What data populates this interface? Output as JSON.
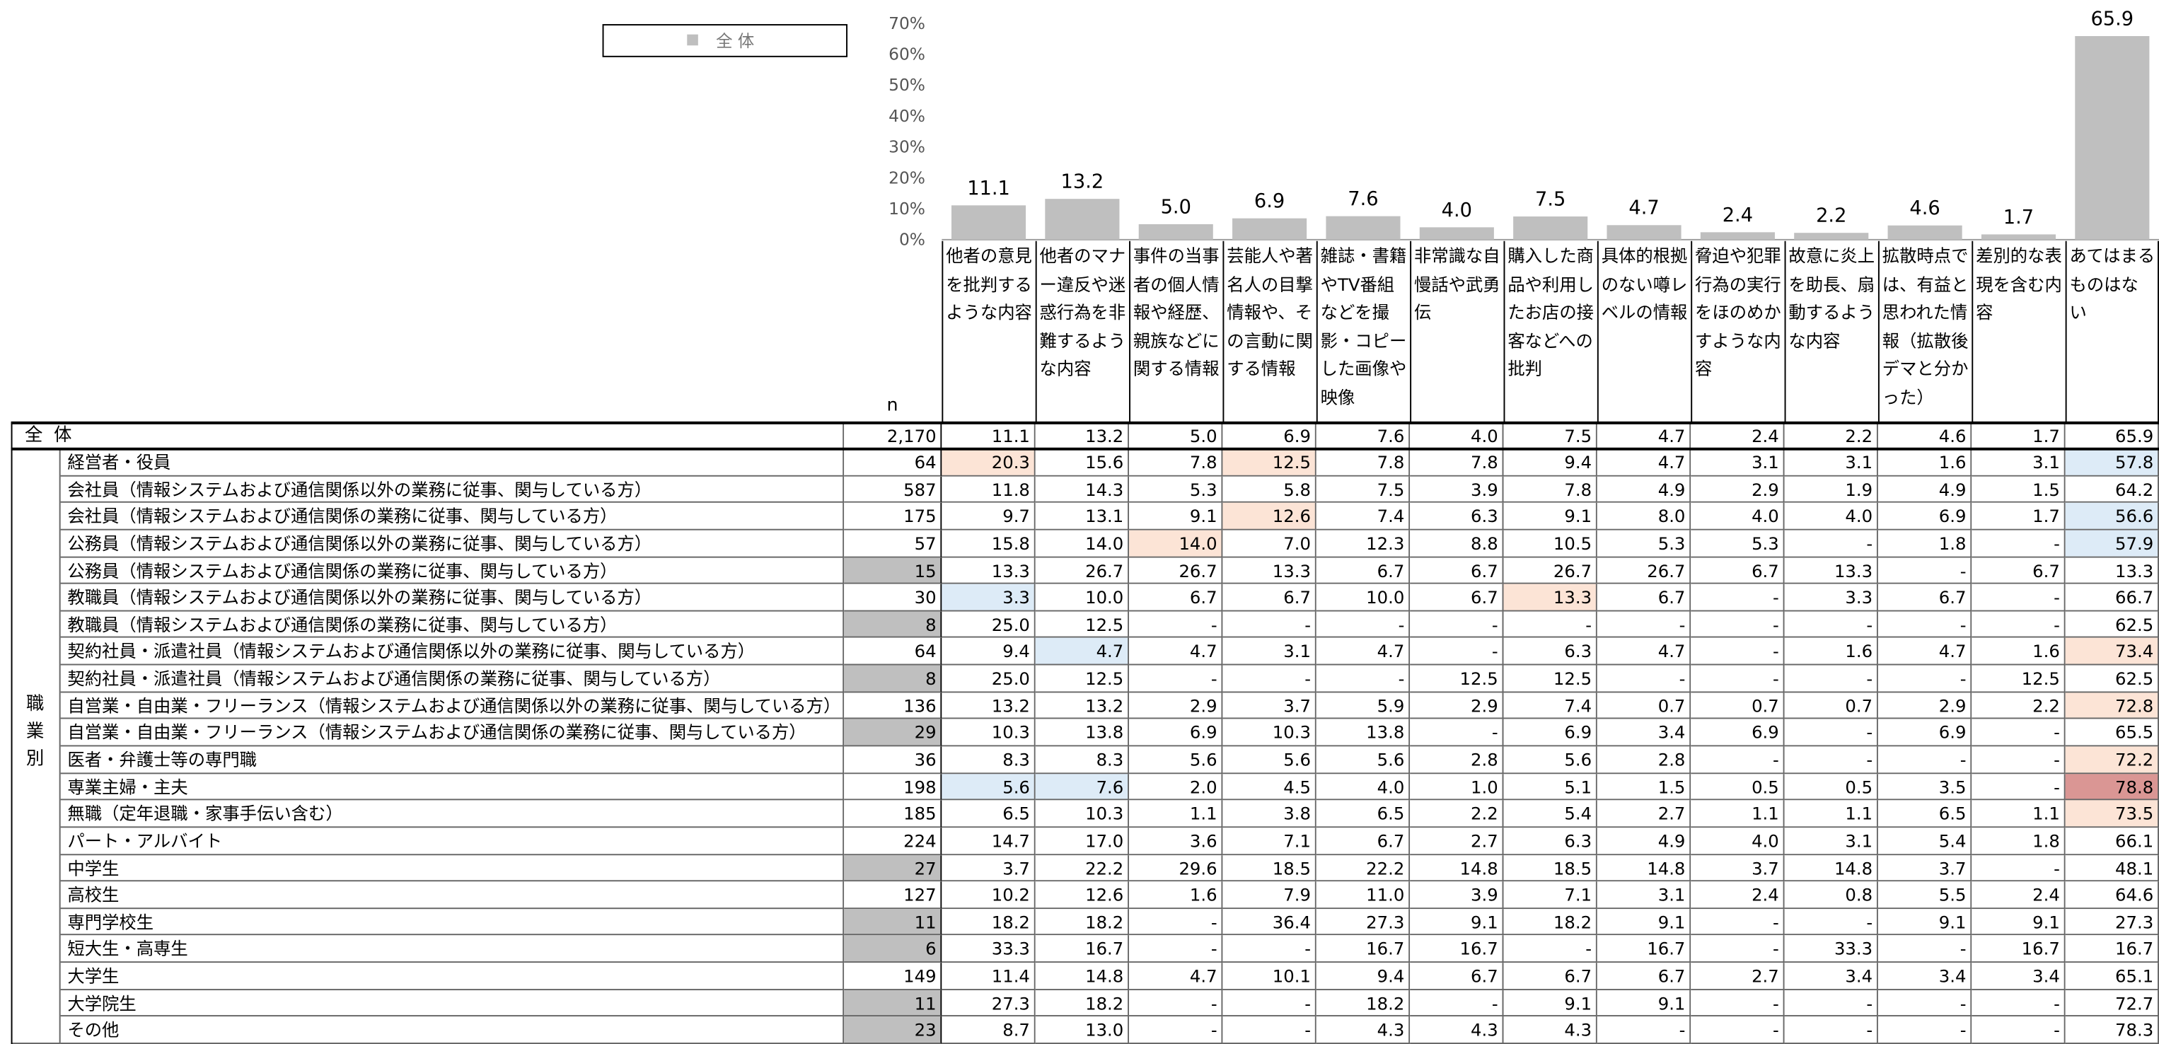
{
  "chart_data": {
    "type": "bar",
    "categories": [
      "他者の意見を批判するような内容",
      "他者のマナー違反や迷惑行為を非難するような内容",
      "事件の当事者の個人情報や経歴、親族などに関する情報",
      "芸能人や著名人の目撃情報や、その言動に関する情報",
      "雑誌・書籍やTV番組などを撮影・コピーした画像や映像",
      "非常識な自慢話や武勇伝",
      "購入した商品や利用したお店の接客などへの批判",
      "具体的根拠のない噂レベルの情報",
      "脅迫や犯罪行為の実行をほのめかすような内容",
      "故意に炎上を助長、扇動するような内容",
      "拡散時点では、有益と思われた情報（拡散後デマと分かった）",
      "差別的な表現を含む内容",
      "あてはまるものはない"
    ],
    "series": [
      {
        "name": "全 体",
        "color": "#bfbfbf",
        "values": [
          11.1,
          13.2,
          5.0,
          6.9,
          7.6,
          4.0,
          7.5,
          4.7,
          2.4,
          2.2,
          4.6,
          1.7,
          65.9
        ],
        "value_labels": [
          "11.1",
          "13.2",
          "5.0",
          "6.9",
          "7.6",
          "4.0",
          "7.5",
          "4.7",
          "2.4",
          "2.2",
          "4.6",
          "1.7",
          "65.9"
        ]
      }
    ],
    "ylim": [
      0,
      70
    ],
    "yticks": [
      {
        "value": 0,
        "label": "0%"
      },
      {
        "value": 10,
        "label": "10%"
      },
      {
        "value": 20,
        "label": "20%"
      },
      {
        "value": 30,
        "label": "30%"
      },
      {
        "value": 40,
        "label": "40%"
      },
      {
        "value": 50,
        "label": "50%"
      },
      {
        "value": 60,
        "label": "60%"
      },
      {
        "value": 70,
        "label": "70%"
      }
    ],
    "legend": "top-left"
  },
  "table": {
    "n_header": "n",
    "group_label": "職業別",
    "colors": {
      "high": "#fce4d6",
      "low": "#ddebf7",
      "top": "#da9694",
      "small": "#bfbfbf"
    },
    "total": {
      "label": "全 体",
      "n": "2,170",
      "values": [
        "11.1",
        "13.2",
        "5.0",
        "6.9",
        "7.6",
        "4.0",
        "7.5",
        "4.7",
        "2.4",
        "2.2",
        "4.6",
        "1.7",
        "65.9"
      ]
    },
    "rows": [
      {
        "label": "経営者・役員",
        "n": "64",
        "values": [
          "20.3",
          "15.6",
          "7.8",
          "12.5",
          "7.8",
          "7.8",
          "9.4",
          "4.7",
          "3.1",
          "3.1",
          "1.6",
          "3.1",
          "57.8"
        ],
        "shade": [
          "high",
          null,
          null,
          "high",
          null,
          null,
          null,
          null,
          null,
          null,
          null,
          null,
          "low"
        ]
      },
      {
        "label": "会社員（情報システムおよび通信関係以外の業務に従事、関与している方）",
        "n": "587",
        "values": [
          "11.8",
          "14.3",
          "5.3",
          "5.8",
          "7.5",
          "3.9",
          "7.8",
          "4.9",
          "2.9",
          "1.9",
          "4.9",
          "1.5",
          "64.2"
        ]
      },
      {
        "label": "会社員（情報システムおよび通信関係の業務に従事、関与している方）",
        "n": "175",
        "values": [
          "9.7",
          "13.1",
          "9.1",
          "12.6",
          "7.4",
          "6.3",
          "9.1",
          "8.0",
          "4.0",
          "4.0",
          "6.9",
          "1.7",
          "56.6"
        ],
        "shade": [
          null,
          null,
          null,
          "high",
          null,
          null,
          null,
          null,
          null,
          null,
          null,
          null,
          "low"
        ]
      },
      {
        "label": "公務員（情報システムおよび通信関係以外の業務に従事、関与している方）",
        "n": "57",
        "values": [
          "15.8",
          "14.0",
          "14.0",
          "7.0",
          "12.3",
          "8.8",
          "10.5",
          "5.3",
          "5.3",
          "-",
          "1.8",
          "-",
          "57.9"
        ],
        "shade": [
          null,
          null,
          "high",
          null,
          null,
          null,
          null,
          null,
          null,
          null,
          null,
          null,
          "low"
        ]
      },
      {
        "label": "公務員（情報システムおよび通信関係の業務に従事、関与している方）",
        "n": "15",
        "n_shade": "small",
        "values": [
          "13.3",
          "26.7",
          "26.7",
          "13.3",
          "6.7",
          "6.7",
          "26.7",
          "26.7",
          "6.7",
          "13.3",
          "-",
          "6.7",
          "13.3"
        ]
      },
      {
        "label": "教職員（情報システムおよび通信関係以外の業務に従事、関与している方）",
        "n": "30",
        "values": [
          "3.3",
          "10.0",
          "6.7",
          "6.7",
          "10.0",
          "6.7",
          "13.3",
          "6.7",
          "-",
          "3.3",
          "6.7",
          "-",
          "66.7"
        ],
        "shade": [
          "low",
          null,
          null,
          null,
          null,
          null,
          "high",
          null,
          null,
          null,
          null,
          null,
          null
        ]
      },
      {
        "label": "教職員（情報システムおよび通信関係の業務に従事、関与している方）",
        "n": "8",
        "n_shade": "small",
        "values": [
          "25.0",
          "12.5",
          "-",
          "-",
          "-",
          "-",
          "-",
          "-",
          "-",
          "-",
          "-",
          "-",
          "62.5"
        ]
      },
      {
        "label": "契約社員・派遣社員（情報システムおよび通信関係以外の業務に従事、関与している方）",
        "n": "64",
        "values": [
          "9.4",
          "4.7",
          "4.7",
          "3.1",
          "4.7",
          "-",
          "6.3",
          "4.7",
          "-",
          "1.6",
          "4.7",
          "1.6",
          "73.4"
        ],
        "shade": [
          null,
          "low",
          null,
          null,
          null,
          null,
          null,
          null,
          null,
          null,
          null,
          null,
          "high"
        ]
      },
      {
        "label": "契約社員・派遣社員（情報システムおよび通信関係の業務に従事、関与している方）",
        "n": "8",
        "n_shade": "small",
        "values": [
          "25.0",
          "12.5",
          "-",
          "-",
          "-",
          "12.5",
          "12.5",
          "-",
          "-",
          "-",
          "-",
          "12.5",
          "62.5"
        ]
      },
      {
        "label": "自営業・自由業・フリーランス（情報システムおよび通信関係以外の業務に従事、関与している方）",
        "n": "136",
        "values": [
          "13.2",
          "13.2",
          "2.9",
          "3.7",
          "5.9",
          "2.9",
          "7.4",
          "0.7",
          "0.7",
          "0.7",
          "2.9",
          "2.2",
          "72.8"
        ],
        "shade": [
          null,
          null,
          null,
          null,
          null,
          null,
          null,
          null,
          null,
          null,
          null,
          null,
          "high"
        ]
      },
      {
        "label": "自営業・自由業・フリーランス（情報システムおよび通信関係の業務に従事、関与している方）",
        "n": "29",
        "n_shade": "small",
        "values": [
          "10.3",
          "13.8",
          "6.9",
          "10.3",
          "13.8",
          "-",
          "6.9",
          "3.4",
          "6.9",
          "-",
          "6.9",
          "-",
          "65.5"
        ]
      },
      {
        "label": "医者・弁護士等の専門職",
        "n": "36",
        "values": [
          "8.3",
          "8.3",
          "5.6",
          "5.6",
          "5.6",
          "2.8",
          "5.6",
          "2.8",
          "-",
          "-",
          "-",
          "-",
          "72.2"
        ],
        "shade": [
          null,
          null,
          null,
          null,
          null,
          null,
          null,
          null,
          null,
          null,
          null,
          null,
          "high"
        ]
      },
      {
        "label": "専業主婦・主夫",
        "n": "198",
        "values": [
          "5.6",
          "7.6",
          "2.0",
          "4.5",
          "4.0",
          "1.0",
          "5.1",
          "1.5",
          "0.5",
          "0.5",
          "3.5",
          "-",
          "78.8"
        ],
        "shade": [
          "low",
          "low",
          null,
          null,
          null,
          null,
          null,
          null,
          null,
          null,
          null,
          null,
          "top"
        ]
      },
      {
        "label": "無職（定年退職・家事手伝い含む）",
        "n": "185",
        "values": [
          "6.5",
          "10.3",
          "1.1",
          "3.8",
          "6.5",
          "2.2",
          "5.4",
          "2.7",
          "1.1",
          "1.1",
          "6.5",
          "1.1",
          "73.5"
        ],
        "shade": [
          null,
          null,
          null,
          null,
          null,
          null,
          null,
          null,
          null,
          null,
          null,
          null,
          "high"
        ]
      },
      {
        "label": "パート・アルバイト",
        "n": "224",
        "values": [
          "14.7",
          "17.0",
          "3.6",
          "7.1",
          "6.7",
          "2.7",
          "6.3",
          "4.9",
          "4.0",
          "3.1",
          "5.4",
          "1.8",
          "66.1"
        ]
      },
      {
        "label": "中学生",
        "n": "27",
        "n_shade": "small",
        "values": [
          "3.7",
          "22.2",
          "29.6",
          "18.5",
          "22.2",
          "14.8",
          "18.5",
          "14.8",
          "3.7",
          "14.8",
          "3.7",
          "-",
          "48.1"
        ]
      },
      {
        "label": "高校生",
        "n": "127",
        "values": [
          "10.2",
          "12.6",
          "1.6",
          "7.9",
          "11.0",
          "3.9",
          "7.1",
          "3.1",
          "2.4",
          "0.8",
          "5.5",
          "2.4",
          "64.6"
        ]
      },
      {
        "label": "専門学校生",
        "n": "11",
        "n_shade": "small",
        "values": [
          "18.2",
          "18.2",
          "-",
          "36.4",
          "27.3",
          "9.1",
          "18.2",
          "9.1",
          "-",
          "-",
          "9.1",
          "9.1",
          "27.3"
        ]
      },
      {
        "label": "短大生・高専生",
        "n": "6",
        "n_shade": "small",
        "values": [
          "33.3",
          "16.7",
          "-",
          "-",
          "16.7",
          "16.7",
          "-",
          "16.7",
          "-",
          "33.3",
          "-",
          "16.7",
          "16.7"
        ]
      },
      {
        "label": "大学生",
        "n": "149",
        "values": [
          "11.4",
          "14.8",
          "4.7",
          "10.1",
          "9.4",
          "6.7",
          "6.7",
          "6.7",
          "2.7",
          "3.4",
          "3.4",
          "3.4",
          "65.1"
        ]
      },
      {
        "label": "大学院生",
        "n": "11",
        "n_shade": "small",
        "values": [
          "27.3",
          "18.2",
          "-",
          "-",
          "18.2",
          "-",
          "9.1",
          "9.1",
          "-",
          "-",
          "-",
          "-",
          "72.7"
        ]
      },
      {
        "label": "その他",
        "n": "23",
        "n_shade": "small",
        "values": [
          "8.7",
          "13.0",
          "-",
          "-",
          "4.3",
          "4.3",
          "4.3",
          "-",
          "-",
          "-",
          "-",
          "-",
          "78.3"
        ]
      }
    ]
  }
}
